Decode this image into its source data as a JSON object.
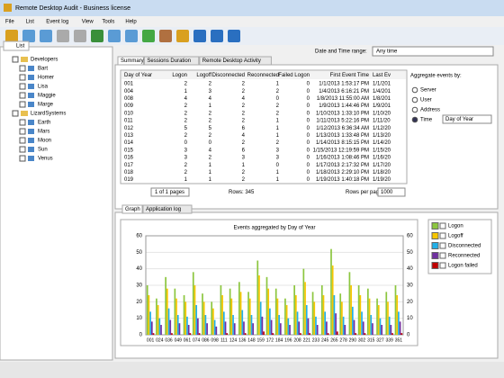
{
  "window": {
    "title": "Remote Desktop Audit - Business license"
  },
  "menu": [
    "File",
    "List",
    "Event log",
    "View",
    "Tools",
    "Help"
  ],
  "left_panel": {
    "tab": "List",
    "groups": [
      {
        "name": "Developers",
        "items": [
          "Bart",
          "Homer",
          "Lisa",
          "Maggie",
          "Marge"
        ]
      },
      {
        "name": "LizardSystems",
        "items": [
          "Earth",
          "Mars",
          "Moon",
          "Sun",
          "Venus"
        ]
      }
    ]
  },
  "range": {
    "label": "Date and Time range:",
    "value": "Any time"
  },
  "tabs": [
    "Summary",
    "Sessions Duration",
    "Remote Desktop Activity"
  ],
  "table": {
    "columns": [
      "Day of Year",
      "Logon",
      "Logoff",
      "Disconnected",
      "Reconnected",
      "Failed Logon",
      "First Event Time",
      "Last Ev"
    ],
    "rows": [
      [
        "001",
        2,
        2,
        2,
        1,
        0,
        "1/1/2013 1:53:17 PM",
        "1/1/201"
      ],
      [
        "004",
        1,
        3,
        2,
        2,
        0,
        "1/4/2013 6:16:21 PM",
        "1/4/201"
      ],
      [
        "008",
        4,
        4,
        4,
        0,
        0,
        "1/8/2013 11:55:00 AM",
        "1/8/201"
      ],
      [
        "009",
        2,
        1,
        2,
        2,
        0,
        "1/9/2013 1:44:46 PM",
        "1/9/201"
      ],
      [
        "010",
        2,
        2,
        2,
        2,
        0,
        "1/10/2013 1:33:10 PM",
        "1/10/20"
      ],
      [
        "011",
        2,
        2,
        2,
        1,
        0,
        "1/11/2013 5:22:16 PM",
        "1/11/20"
      ],
      [
        "012",
        5,
        5,
        6,
        1,
        0,
        "1/12/2013 6:36:34 AM",
        "1/12/20"
      ],
      [
        "013",
        2,
        2,
        4,
        1,
        0,
        "1/13/2013 1:33:48 PM",
        "1/13/20"
      ],
      [
        "014",
        0,
        0,
        2,
        2,
        0,
        "1/14/2013 8:15:15 PM",
        "1/14/20"
      ],
      [
        "015",
        3,
        4,
        6,
        3,
        0,
        "1/15/2013 12:19:59 PM",
        "1/15/20"
      ],
      [
        "016",
        3,
        2,
        3,
        3,
        0,
        "1/16/2013 1:08:46 PM",
        "1/16/20"
      ],
      [
        "017",
        2,
        1,
        1,
        0,
        0,
        "1/17/2013 2:17:32 PM",
        "1/17/20"
      ],
      [
        "018",
        2,
        1,
        2,
        1,
        0,
        "1/18/2013 2:29:10 PM",
        "1/18/20"
      ],
      [
        "019",
        1,
        1,
        2,
        1,
        0,
        "1/19/2013 1:40:18 PM",
        "1/19/20"
      ]
    ]
  },
  "pager": {
    "pages": "1 of 1 pages",
    "rows": "Rows: 345",
    "per_page_label": "Rows per page:",
    "per_page": "1000"
  },
  "aggregate": {
    "label": "Aggregate events by:",
    "options": [
      "Server",
      "User",
      "Address",
      "Time"
    ],
    "selected": 3,
    "time_unit": "Day of Year"
  },
  "lower_tabs": [
    "Graph",
    "Application log"
  ],
  "chart_data": {
    "type": "bar",
    "title": "Events aggregated by Day of Year",
    "categories": [
      "001",
      "024",
      "036",
      "049",
      "061",
      "074",
      "086",
      "098",
      "111",
      "124",
      "136",
      "148",
      "159",
      "172",
      "184",
      "196",
      "208",
      "221",
      "233",
      "245",
      "265",
      "278",
      "290",
      "302",
      "315",
      "327",
      "339",
      "351"
    ],
    "ylim": [
      0,
      60
    ],
    "yticks": [
      0,
      10,
      20,
      30,
      40,
      50,
      60
    ],
    "series": [
      {
        "name": "Logon",
        "color": "#8cc63f",
        "values": [
          30,
          22,
          35,
          28,
          24,
          38,
          25,
          20,
          30,
          28,
          32,
          26,
          45,
          35,
          28,
          22,
          30,
          40,
          26,
          30,
          52,
          25,
          38,
          30,
          28,
          22,
          26,
          30
        ]
      },
      {
        "name": "Logoff",
        "color": "#f7c600",
        "values": [
          24,
          18,
          28,
          22,
          20,
          30,
          20,
          16,
          24,
          22,
          26,
          22,
          36,
          28,
          22,
          18,
          24,
          32,
          20,
          24,
          42,
          20,
          30,
          24,
          22,
          18,
          20,
          24
        ]
      },
      {
        "name": "Disconnected",
        "color": "#22b0e8",
        "values": [
          14,
          10,
          16,
          12,
          11,
          18,
          12,
          9,
          14,
          12,
          15,
          12,
          20,
          16,
          12,
          10,
          14,
          18,
          11,
          14,
          24,
          11,
          17,
          14,
          12,
          10,
          11,
          14
        ]
      },
      {
        "name": "Reconnected",
        "color": "#7030a0",
        "values": [
          8,
          6,
          9,
          7,
          6,
          10,
          7,
          5,
          8,
          7,
          8,
          7,
          11,
          9,
          7,
          6,
          8,
          10,
          6,
          8,
          13,
          6,
          9,
          8,
          7,
          6,
          6,
          8
        ]
      },
      {
        "name": "Logon failed",
        "color": "#c00000",
        "values": [
          1,
          0,
          1,
          0,
          1,
          1,
          0,
          0,
          1,
          0,
          1,
          0,
          2,
          1,
          0,
          0,
          1,
          1,
          0,
          1,
          2,
          0,
          1,
          1,
          0,
          0,
          1,
          1
        ]
      }
    ]
  }
}
